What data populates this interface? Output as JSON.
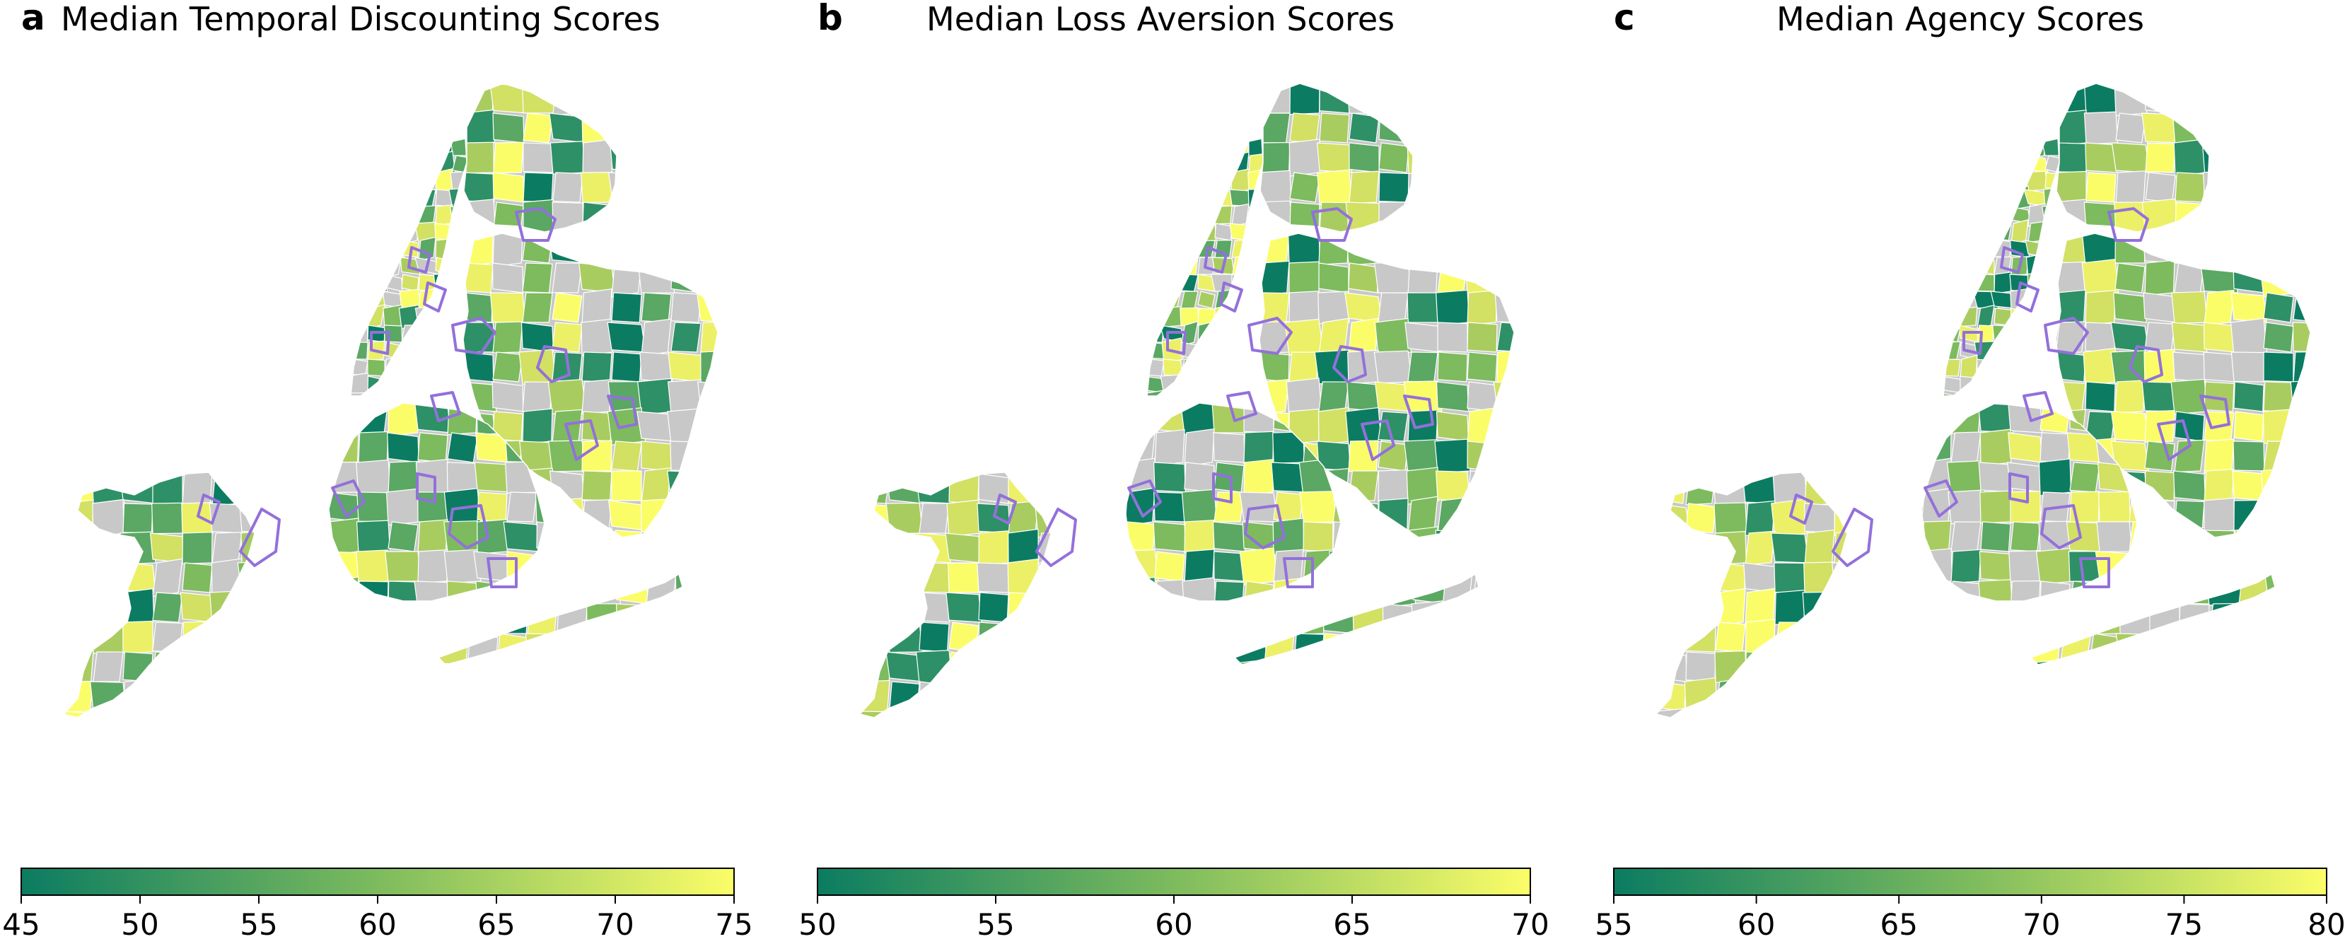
{
  "panels": [
    {
      "letter": "a",
      "title": "Median Temporal Discounting Scores",
      "colorbar": {
        "min": 45,
        "max": 75,
        "ticks": [
          "45",
          "50",
          "55",
          "60",
          "65",
          "70",
          "75"
        ]
      }
    },
    {
      "letter": "b",
      "title": "Median Loss Aversion Scores",
      "colorbar": {
        "min": 50,
        "max": 70,
        "ticks": [
          "50",
          "55",
          "60",
          "65",
          "70"
        ]
      }
    },
    {
      "letter": "c",
      "title": "Median Agency Scores",
      "colorbar": {
        "min": 55,
        "max": 80,
        "ticks": [
          "55",
          "60",
          "65",
          "70",
          "75",
          "80"
        ]
      }
    }
  ],
  "colors": {
    "low": "#0b7c61",
    "mid": "#7dbb5e",
    "high": "#fbfd68",
    "missing": "#c8c8c8",
    "highlight": "#9370db"
  }
}
